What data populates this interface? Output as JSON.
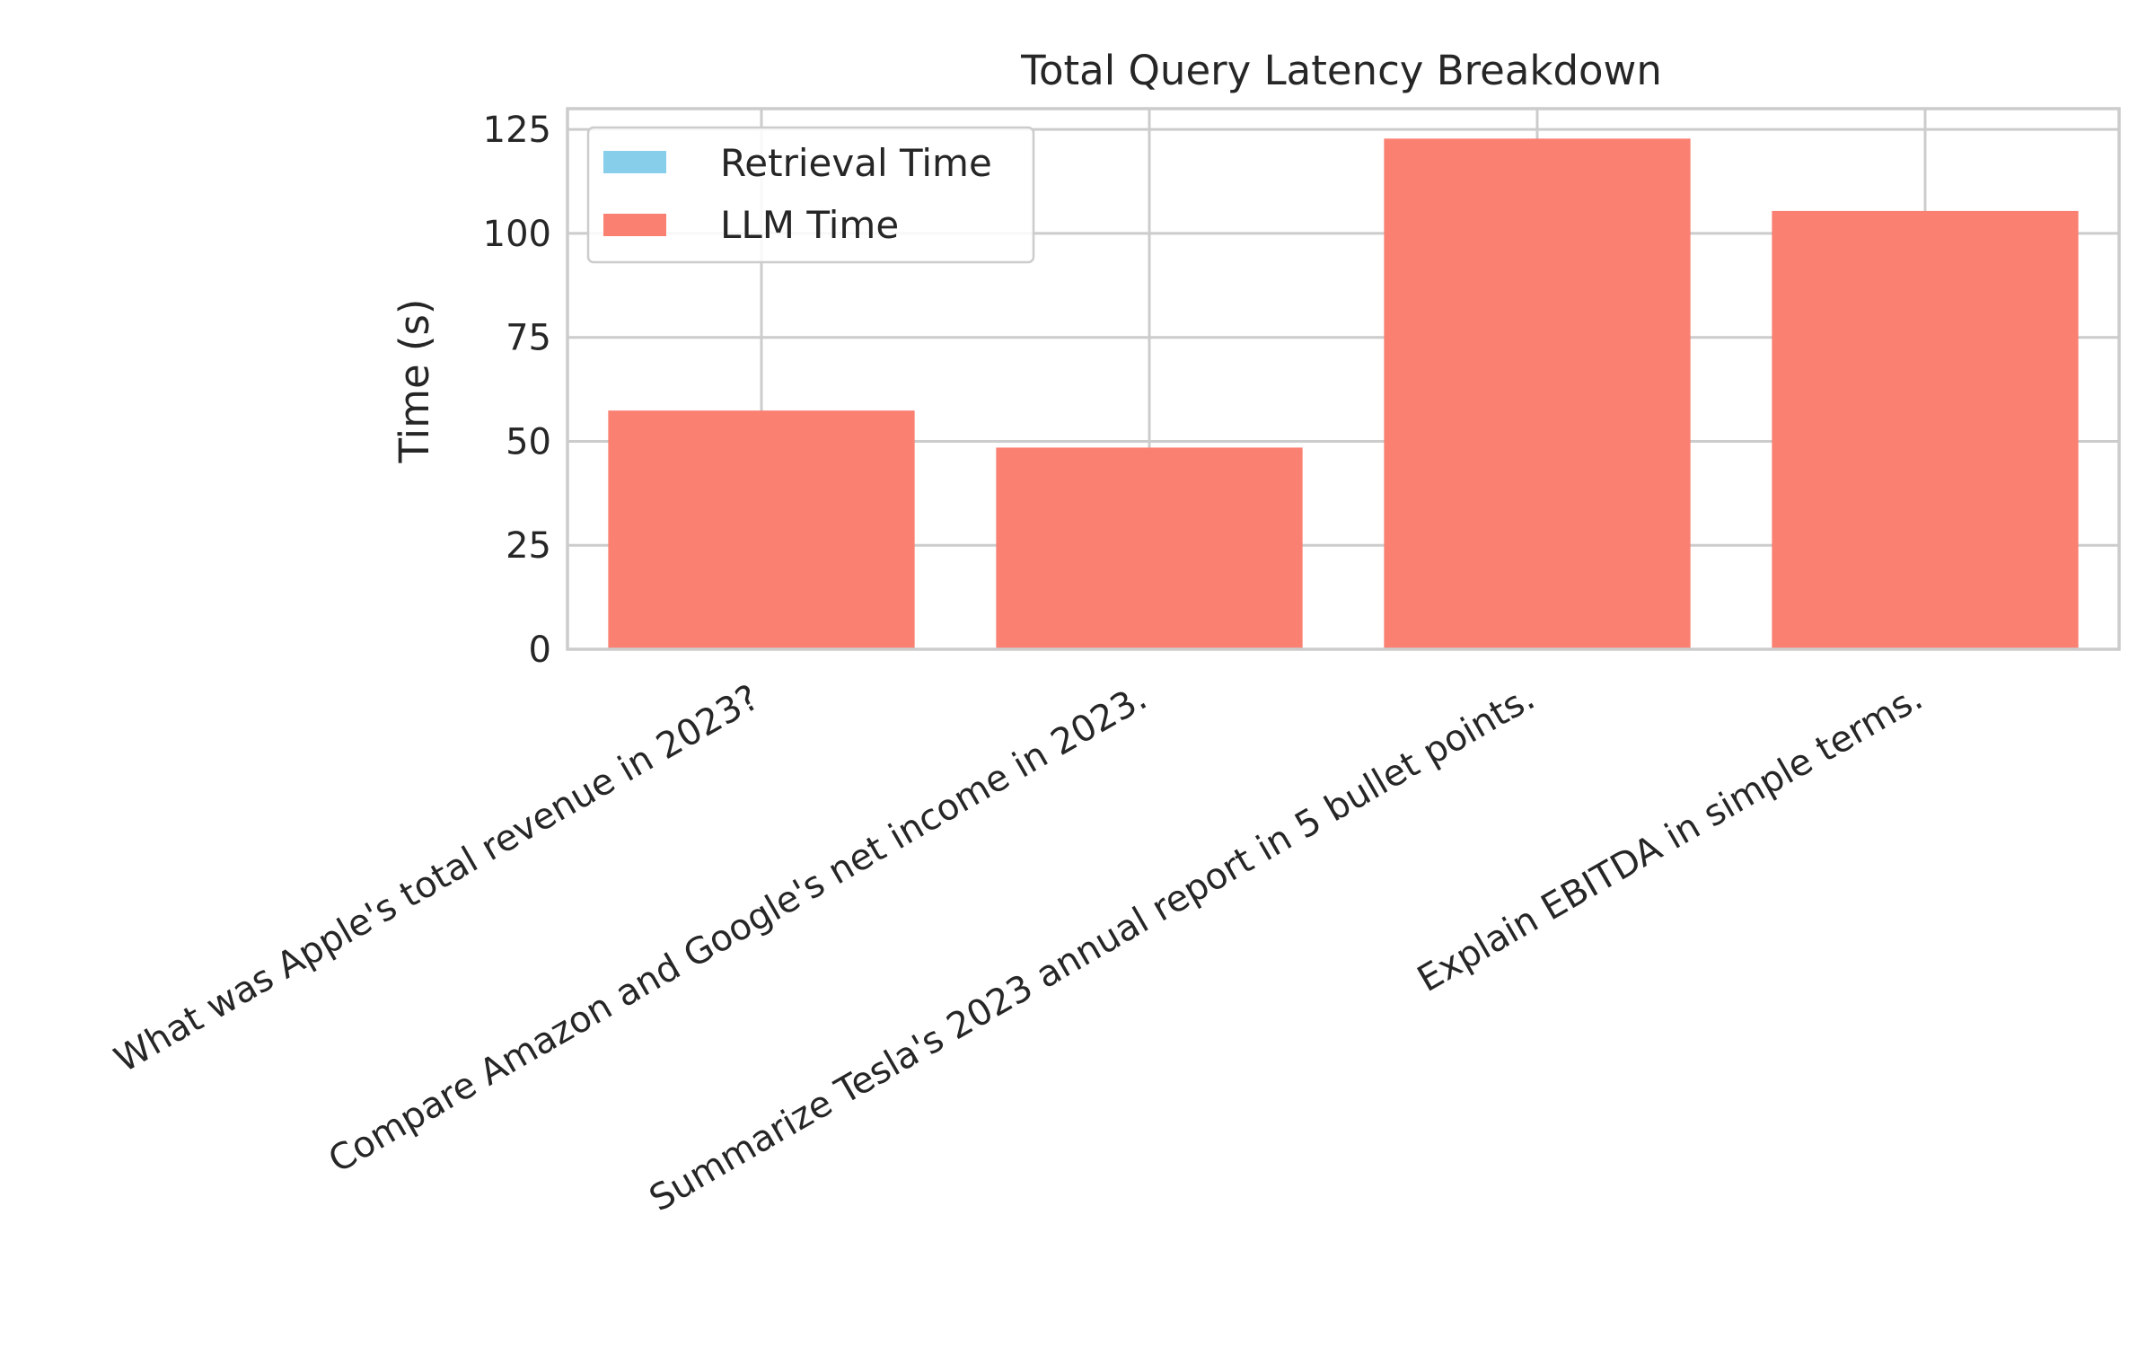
{
  "chart_data": {
    "type": "bar",
    "stacked": true,
    "title": "Total Query Latency Breakdown",
    "xlabel": "",
    "ylabel": "Time (s)",
    "ylim": [
      0,
      130
    ],
    "yticks": [
      0,
      25,
      50,
      75,
      100,
      125
    ],
    "grid": true,
    "legend_position": "top-left",
    "categories": [
      "What was Apple's total revenue in 2023?",
      "Compare Amazon and Google's net income in 2023.",
      "Summarize Tesla's 2023 annual report in 5 bullet points.",
      "Explain EBITDA in simple terms."
    ],
    "series": [
      {
        "name": "Retrieval Time",
        "color": "#87ceeb",
        "values": [
          0.2,
          0.2,
          0.2,
          0.2
        ]
      },
      {
        "name": "LLM Time",
        "color": "#fa8072",
        "values": [
          57.2,
          48.3,
          122.6,
          105.2
        ]
      }
    ]
  }
}
